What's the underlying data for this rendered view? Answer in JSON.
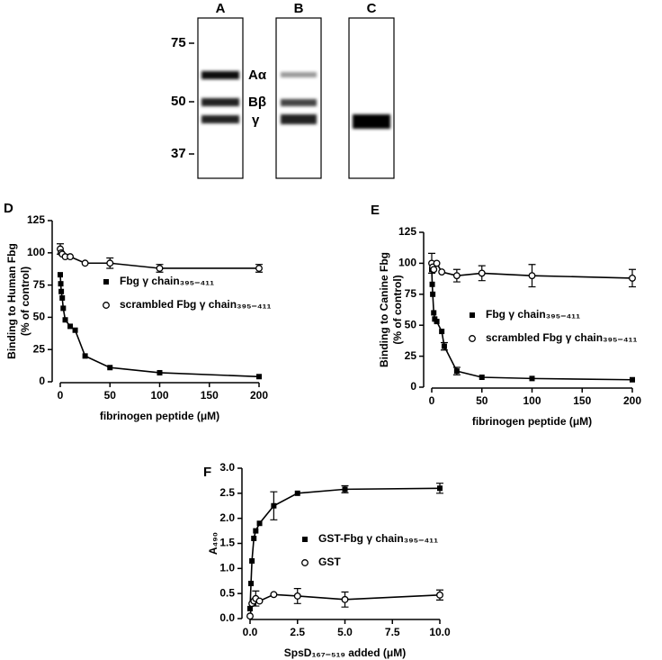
{
  "gel": {
    "lanes": [
      "A",
      "B",
      "C"
    ],
    "markers": [
      "75",
      "50",
      "37"
    ],
    "bands": [
      "Aα",
      "Bβ",
      "γ"
    ]
  },
  "chart_data": [
    {
      "type": "scatter",
      "label": "D",
      "xlabel": "fibrinogen peptide (μM)",
      "ylabel": [
        "Binding to Human Fbg",
        "(% of control)"
      ],
      "xlim": [
        0,
        200
      ],
      "xticks": [
        0,
        50,
        100,
        150,
        200
      ],
      "ylim": [
        0,
        125
      ],
      "yticks": [
        0,
        25,
        50,
        75,
        100,
        125
      ],
      "series": [
        {
          "name": "Fbg γ chain₃₉₅₋₄₁₁",
          "color": "#000000",
          "marker": "filled-square",
          "x": [
            0,
            0.5,
            1,
            2,
            3,
            5,
            10,
            15,
            25,
            50,
            100,
            200
          ],
          "values": [
            83,
            76,
            70,
            65,
            57,
            48,
            43,
            40,
            20,
            11,
            7,
            4
          ],
          "errors": [
            null,
            null,
            null,
            null,
            null,
            null,
            null,
            null,
            null,
            null,
            null,
            null
          ]
        },
        {
          "name": "scrambled Fbg γ chain₃₉₅₋₄₁₁",
          "color": "#000000",
          "marker": "open-circle",
          "x": [
            0,
            1,
            2,
            5,
            10,
            25,
            50,
            100,
            200
          ],
          "values": [
            103,
            100,
            99,
            97,
            97,
            92,
            92,
            88,
            88
          ],
          "errors": [
            4,
            null,
            null,
            null,
            null,
            null,
            4,
            3,
            3
          ]
        }
      ]
    },
    {
      "type": "scatter",
      "label": "E",
      "xlabel": "fibrinogen peptide (μM)",
      "ylabel": [
        "Binding to Canine Fbg",
        "(% of control)"
      ],
      "xlim": [
        0,
        200
      ],
      "xticks": [
        0,
        50,
        100,
        150,
        200
      ],
      "ylim": [
        0,
        125
      ],
      "yticks": [
        0,
        25,
        50,
        75,
        100,
        125
      ],
      "series": [
        {
          "name": "Fbg γ chain₃₉₅₋₄₁₁",
          "color": "#000000",
          "marker": "filled-square",
          "x": [
            0,
            0.5,
            1,
            2,
            3,
            5,
            10,
            12.5,
            25,
            50,
            100,
            200
          ],
          "values": [
            95,
            83,
            75,
            60,
            55,
            53,
            45,
            33,
            13,
            8,
            7,
            6
          ],
          "errors": [
            null,
            null,
            null,
            null,
            null,
            null,
            null,
            3,
            3,
            null,
            null,
            null
          ]
        },
        {
          "name": "scrambled Fbg γ chain₃₉₅₋₄₁₁",
          "color": "#000000",
          "marker": "open-circle",
          "x": [
            0,
            1,
            2,
            5,
            10,
            25,
            50,
            100,
            200
          ],
          "values": [
            100,
            97,
            95,
            100,
            93,
            90,
            92,
            90,
            88
          ],
          "errors": [
            8,
            null,
            null,
            null,
            null,
            5,
            6,
            9,
            7
          ]
        }
      ]
    },
    {
      "type": "scatter",
      "label": "F",
      "xlabel": "SpsD₁₆₇₋₅₁₉ added (μM)",
      "ylabel": [
        "A₄₉₀"
      ],
      "xlim": [
        0,
        10
      ],
      "xticks": [
        {
          "value": 0,
          "label": "0.0"
        },
        2.5,
        {
          "value": 5,
          "label": "5.0"
        },
        7.5,
        {
          "value": 10,
          "label": "10.0"
        }
      ],
      "ylim": [
        0,
        3
      ],
      "yticks": [
        {
          "value": 0,
          "label": "0.0"
        },
        0.5,
        {
          "value": 1,
          "label": "1.0"
        },
        1.5,
        {
          "value": 2,
          "label": "2.0"
        },
        2.5,
        {
          "value": 3,
          "label": "3.0"
        }
      ],
      "series": [
        {
          "name": "GST-Fbg γ chain₃₉₅₋₄₁₁",
          "color": "#000000",
          "marker": "filled-square",
          "x": [
            0,
            0.05,
            0.1,
            0.2,
            0.3,
            0.5,
            1.25,
            2.5,
            5,
            10
          ],
          "values": [
            0.2,
            0.7,
            1.15,
            1.6,
            1.75,
            1.9,
            2.25,
            2.5,
            2.58,
            2.6
          ],
          "errors": [
            null,
            null,
            null,
            null,
            null,
            null,
            0.28,
            null,
            0.07,
            0.1
          ]
        },
        {
          "name": "GST",
          "color": "#000000",
          "marker": "open-circle",
          "x": [
            0,
            0.1,
            0.2,
            0.3,
            0.5,
            1.25,
            2.5,
            5,
            10
          ],
          "values": [
            0.05,
            0.3,
            0.35,
            0.4,
            0.35,
            0.48,
            0.45,
            0.38,
            0.47
          ],
          "errors": [
            null,
            null,
            null,
            0.15,
            null,
            null,
            0.15,
            0.15,
            0.1
          ]
        }
      ]
    }
  ]
}
